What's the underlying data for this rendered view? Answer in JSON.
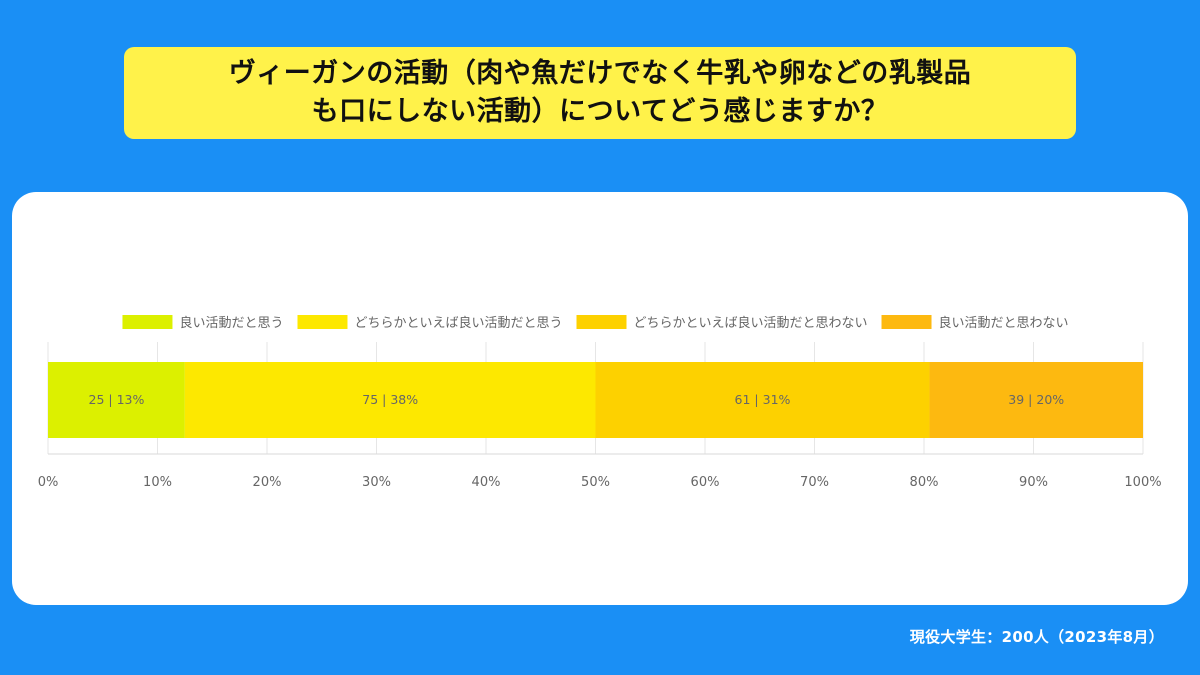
{
  "title": {
    "line1": "ヴィーガンの活動（肉や魚だけでなく牛乳や卵などの乳製品",
    "line2": "も口にしない活動）についてどう感じますか？"
  },
  "footer": "現役大学生：200人（2023年8月）",
  "chart_data": {
    "type": "bar",
    "orientation": "horizontal-stacked-100",
    "title": "ヴィーガンの活動（肉や魚だけでなく牛乳や卵などの乳製品も口にしない活動）についてどう感じますか？",
    "xlim": [
      0,
      100
    ],
    "x_unit": "%",
    "grid": true,
    "legend_position": "top",
    "ticks": [
      "0%",
      "10%",
      "20%",
      "30%",
      "40%",
      "50%",
      "60%",
      "70%",
      "80%",
      "90%",
      "100%"
    ],
    "series": [
      {
        "name": "良い活動だと思う",
        "count": 25,
        "percent": 12.5,
        "label": "25 | 13%",
        "color": "#dcf000"
      },
      {
        "name": "どちらかといえば良い活動だと思う",
        "count": 75,
        "percent": 37.5,
        "label": "75 | 38%",
        "color": "#fde800"
      },
      {
        "name": "どちらかといえば良い活動だと思わない",
        "count": 61,
        "percent": 30.5,
        "label": "61 | 31%",
        "color": "#fdd100"
      },
      {
        "name": "良い活動だと思わない",
        "count": 39,
        "percent": 19.5,
        "label": "39 | 20%",
        "color": "#fdb910"
      }
    ]
  }
}
